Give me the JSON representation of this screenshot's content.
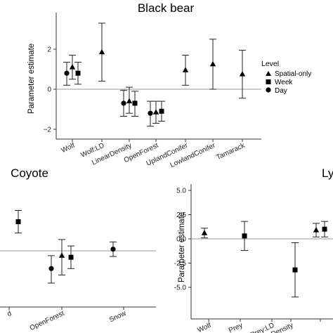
{
  "chart_data": [
    {
      "type": "scatter",
      "title": "Black bear",
      "ylabel": "Parameter estimate",
      "ylim": [
        -2.2,
        3.8
      ],
      "yticks": [
        2,
        0,
        -2
      ],
      "ytick_labels": [
        "2",
        "0",
        "−2"
      ],
      "categories": [
        "Wolf",
        "Wolf:LD",
        "LinearDensity",
        "OpenForest",
        "UplandConifer",
        "LowlandConifer",
        "Tamarack"
      ],
      "legend": {
        "title": "Level",
        "position": "right",
        "entries": [
          {
            "label": "Spatial-only",
            "marker": "triangle"
          },
          {
            "label": "Week",
            "marker": "square"
          },
          {
            "label": "Day",
            "marker": "circle"
          }
        ]
      },
      "series": [
        {
          "name": "Spatial-only",
          "marker": "triangle",
          "points": [
            {
              "category": "Wolf",
              "value": 1.1,
              "lower": 0.5,
              "upper": 1.7
            },
            {
              "category": "Wolf:LD",
              "value": 1.85,
              "lower": 0.4,
              "upper": 3.3
            },
            {
              "category": "LinearDensity",
              "value": -0.6,
              "lower": -1.2,
              "upper": 0.1
            },
            {
              "category": "OpenForest",
              "value": -1.15,
              "lower": -1.7,
              "upper": -0.6
            },
            {
              "category": "UplandConifer",
              "value": 0.95,
              "lower": 0.2,
              "upper": 1.7
            },
            {
              "category": "LowlandConifer",
              "value": 1.25,
              "lower": 0.0,
              "upper": 2.5
            },
            {
              "category": "Tamarack",
              "value": 0.75,
              "lower": -0.45,
              "upper": 1.95
            }
          ]
        },
        {
          "name": "Week",
          "marker": "square",
          "points": [
            {
              "category": "Wolf",
              "value": 0.8,
              "lower": 0.25,
              "upper": 1.35
            },
            {
              "category": "LinearDensity",
              "value": -0.7,
              "lower": -1.35,
              "upper": -0.1
            },
            {
              "category": "OpenForest",
              "value": -1.1,
              "lower": -1.6,
              "upper": -0.6
            }
          ]
        },
        {
          "name": "Day",
          "marker": "circle",
          "points": [
            {
              "category": "Wolf",
              "value": 0.8,
              "lower": 0.2,
              "upper": 1.35
            },
            {
              "category": "LinearDensity",
              "value": -0.7,
              "lower": -1.35,
              "upper": -0.05
            },
            {
              "category": "OpenForest",
              "value": -1.2,
              "lower": -1.85,
              "upper": -0.6
            }
          ]
        }
      ]
    },
    {
      "type": "scatter",
      "title": "Coyote",
      "categories": [
        "d",
        "OpenForest",
        "Snow"
      ],
      "series": [
        {
          "name": "Spatial-only",
          "marker": "triangle",
          "points": [
            {
              "category": "OpenForest",
              "value": -0.3,
              "lower": -1.5,
              "upper": 0.7
            }
          ]
        },
        {
          "name": "Week",
          "marker": "square",
          "points": [
            {
              "category": "d",
              "value": 1.8,
              "lower": 1.1,
              "upper": 2.5
            },
            {
              "category": "OpenForest",
              "value": -0.4,
              "lower": -1.1,
              "upper": 0.3
            }
          ]
        },
        {
          "name": "Day",
          "marker": "circle",
          "points": [
            {
              "category": "OpenForest",
              "value": -1.1,
              "lower": -2.0,
              "upper": -0.3
            },
            {
              "category": "Snow",
              "value": 0.1,
              "lower": -0.35,
              "upper": 0.55
            }
          ]
        }
      ]
    },
    {
      "type": "scatter",
      "title": "Ly",
      "ylabel": "Parameter estimate",
      "ylim": [
        -6.3,
        5.4
      ],
      "yticks": [
        5.0,
        2.5,
        0.0,
        -2.5,
        -5.0
      ],
      "ytick_labels": [
        "5.0",
        "2.5",
        "0.0",
        "-2.5",
        "-5.0"
      ],
      "categories": [
        "Wolf",
        "Prey",
        "Prey:LD",
        "LinearDensity",
        ""
      ],
      "series": [
        {
          "name": "Spatial-only",
          "marker": "triangle",
          "points": [
            {
              "category": "Wolf",
              "value": 0.6,
              "lower": 0.1,
              "upper": 1.1
            },
            {
              "category": "",
              "value": 0.9,
              "lower": 0.2,
              "upper": 1.6
            }
          ]
        },
        {
          "name": "Week",
          "marker": "square",
          "points": [
            {
              "category": "Prey",
              "value": 0.3,
              "lower": -1.2,
              "upper": 1.8
            },
            {
              "category": "LinearDensity",
              "value": -3.2,
              "lower": -6.0,
              "upper": -0.4
            },
            {
              "category": "",
              "value": 1.0,
              "lower": 0.2,
              "upper": 1.8
            }
          ]
        }
      ]
    }
  ]
}
